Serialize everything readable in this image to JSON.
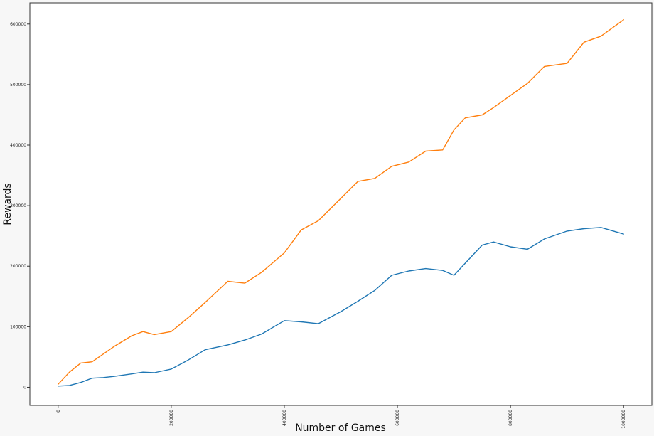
{
  "chart_data": {
    "type": "line",
    "title": "",
    "xlabel": "Number of Games",
    "ylabel": "Rewards",
    "xlim": [
      -50000,
      1050000
    ],
    "ylim": [
      -30000,
      635000
    ],
    "grid": false,
    "legend": "none",
    "xticks": [
      0,
      200000,
      400000,
      600000,
      800000,
      1000000
    ],
    "xtick_labels": [
      "0",
      "200000",
      "400000",
      "600000",
      "800000",
      "1000000"
    ],
    "yticks": [
      0,
      100000,
      200000,
      300000,
      400000,
      500000,
      600000
    ],
    "ytick_labels": [
      "0",
      "100000",
      "200000",
      "300000",
      "400000",
      "500000",
      "600000"
    ],
    "x": [
      0,
      20000,
      40000,
      60000,
      80000,
      100000,
      130000,
      150000,
      170000,
      200000,
      230000,
      260000,
      300000,
      330000,
      360000,
      400000,
      430000,
      460000,
      500000,
      530000,
      560000,
      590000,
      620000,
      650000,
      680000,
      700000,
      720000,
      750000,
      770000,
      800000,
      830000,
      860000,
      900000,
      930000,
      960000,
      1000000
    ],
    "series": [
      {
        "color": "#1f77b4",
        "values": [
          2000,
          3000,
          8000,
          15000,
          16000,
          18000,
          22000,
          25000,
          24000,
          30000,
          45000,
          62000,
          70000,
          78000,
          88000,
          110000,
          108000,
          105000,
          125000,
          142000,
          160000,
          185000,
          192000,
          196000,
          193000,
          185000,
          205000,
          235000,
          240000,
          232000,
          228000,
          245000,
          258000,
          262000,
          264000,
          253000
        ]
      },
      {
        "color": "#ff7f0e",
        "values": [
          5000,
          25000,
          40000,
          42000,
          55000,
          68000,
          85000,
          92000,
          87000,
          92000,
          115000,
          140000,
          175000,
          172000,
          190000,
          222000,
          260000,
          275000,
          312000,
          340000,
          345000,
          365000,
          372000,
          390000,
          392000,
          425000,
          445000,
          450000,
          462000,
          482000,
          502000,
          530000,
          535000,
          570000,
          580000,
          607000
        ]
      }
    ]
  }
}
